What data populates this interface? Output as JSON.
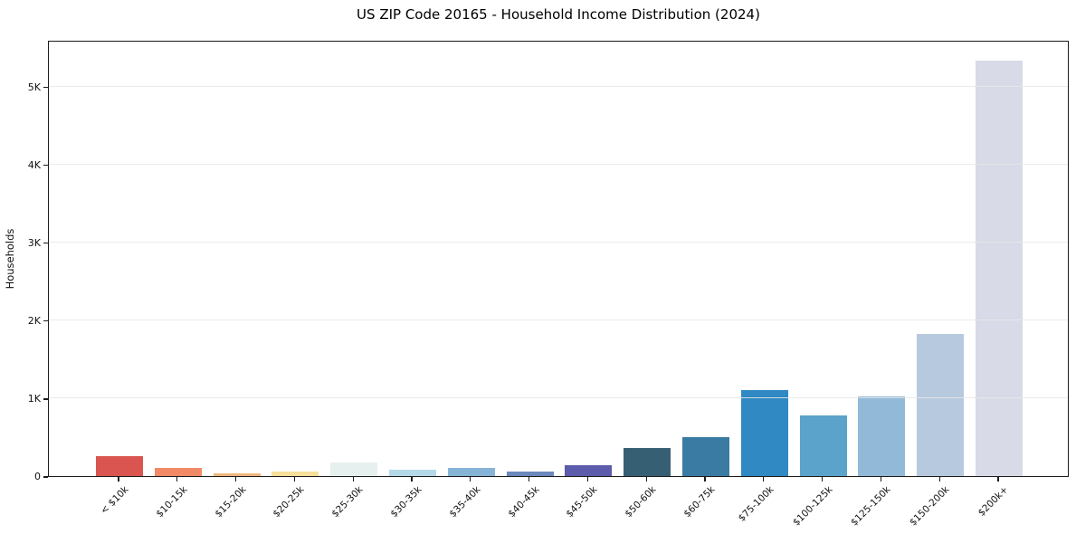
{
  "chart_data": {
    "type": "bar",
    "title": "US ZIP Code 20165 - Household Income Distribution (2024)",
    "xlabel": "",
    "ylabel": "Households",
    "categories": [
      "< $10k",
      "$10-15k",
      "$15-20k",
      "$20-25k",
      "$25-30k",
      "$30-35k",
      "$35-40k",
      "$40-45k",
      "$45-50k",
      "$50-60k",
      "$60-75k",
      "$75-100k",
      "$100-125k",
      "$125-150k",
      "$150-200k",
      "$200k+"
    ],
    "values": [
      250,
      110,
      40,
      60,
      180,
      85,
      100,
      55,
      140,
      360,
      500,
      1100,
      780,
      1020,
      1830,
      5330
    ],
    "bar_colors": [
      "#da554f",
      "#f18a66",
      "#edb67e",
      "#f7e09a",
      "#e6f1ef",
      "#b4dae8",
      "#86b4d7",
      "#6b89bd",
      "#5d5bab",
      "#375f74",
      "#3a7ba3",
      "#3189c4",
      "#5ba3ca",
      "#92bad8",
      "#b7c9de",
      "#d8dae7"
    ],
    "ytick_labels": [
      "0",
      "1K",
      "2K",
      "3K",
      "4K",
      "5K"
    ],
    "ytick_values": [
      0,
      1000,
      2000,
      3000,
      4000,
      5000
    ],
    "ylim": [
      0,
      5600
    ],
    "grid": "horizontal",
    "legend": "none",
    "background_color": "#ffffff",
    "spine_color": "#1c1c1c"
  }
}
